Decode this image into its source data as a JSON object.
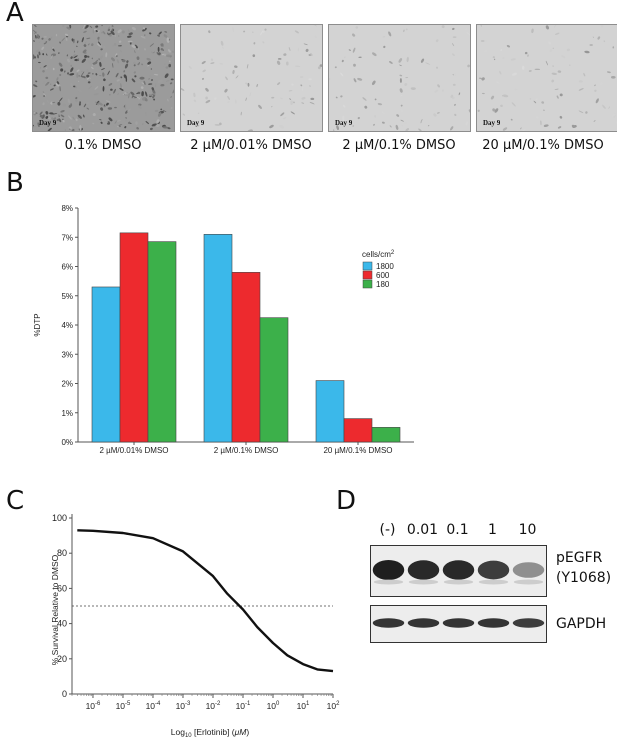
{
  "panels": {
    "a": {
      "letter": "A",
      "images": [
        {
          "caption": "0.1% DMSO",
          "day": "Day 9",
          "density": "dense"
        },
        {
          "caption": "2 µM/0.01% DMSO",
          "day": "Day 9",
          "density": "sparse"
        },
        {
          "caption": "2 µM/0.1% DMSO",
          "day": "Day 9",
          "density": "sparse"
        },
        {
          "caption": "20 µM/0.1% DMSO",
          "day": "Day 9",
          "density": "sparse"
        }
      ]
    },
    "b": {
      "letter": "B"
    },
    "c": {
      "letter": "C"
    },
    "d": {
      "letter": "D",
      "lane_labels": [
        "(-)",
        "0.01",
        "0.1",
        "1",
        "10"
      ],
      "blots": [
        {
          "label": "pEGFR",
          "sublabel": "(Y1068)",
          "band_intensity": [
            1.0,
            0.95,
            0.95,
            0.85,
            0.45
          ]
        },
        {
          "label": "GAPDH",
          "band_intensity": [
            0.9,
            0.9,
            0.9,
            0.9,
            0.85
          ]
        }
      ]
    }
  },
  "chart_data": [
    {
      "type": "bar",
      "categories": [
        "2 µM/0.01% DMSO",
        "2 µM/0.1% DMSO",
        "20 µM/0.1% DMSO"
      ],
      "series": [
        {
          "name": "1800",
          "color": "#3bb8ea",
          "values": [
            5.3,
            7.1,
            2.1
          ]
        },
        {
          "name": "600",
          "color": "#ed2a2e",
          "values": [
            7.15,
            5.8,
            0.8
          ]
        },
        {
          "name": "180",
          "color": "#3cb04a",
          "values": [
            6.85,
            4.25,
            0.5
          ]
        }
      ],
      "ylabel": "%DTP",
      "ylim": [
        0,
        8
      ],
      "yticks": [
        "0%",
        "1%",
        "2%",
        "3%",
        "4%",
        "5%",
        "6%",
        "7%",
        "8%"
      ],
      "legend_title": "cells/cm",
      "legend_title_sup": "2",
      "legend_position": "right",
      "grid": false
    },
    {
      "type": "line",
      "series": [
        {
          "x": [
            3e-07,
            1e-06,
            1e-05,
            0.0001,
            0.001,
            0.01,
            0.03,
            0.1,
            0.3,
            1,
            3,
            10,
            30,
            100
          ],
          "y": [
            93,
            92.7,
            91.5,
            88.5,
            81,
            67,
            57,
            48,
            38,
            29,
            22,
            17,
            14,
            13
          ]
        }
      ],
      "reference_line_y": 50,
      "xscale": "log",
      "xlim": [
        2e-07,
        100
      ],
      "ylim": [
        0,
        100
      ],
      "xticks": [
        "-6",
        "-5",
        "-4",
        "-3",
        "-2",
        "-1",
        "0",
        "1",
        "2"
      ],
      "yticks": [
        "0",
        "20",
        "40",
        "60",
        "80",
        "100"
      ],
      "xtick_base": "10",
      "xlabel": "Log",
      "xlabel_sub": "10",
      "xlabel_rest": " [Erlotinib] (",
      "xlabel_unit": "μM",
      "xlabel_close": ")",
      "ylabel": "% Survival Relative to DMSO",
      "grid": false
    }
  ]
}
